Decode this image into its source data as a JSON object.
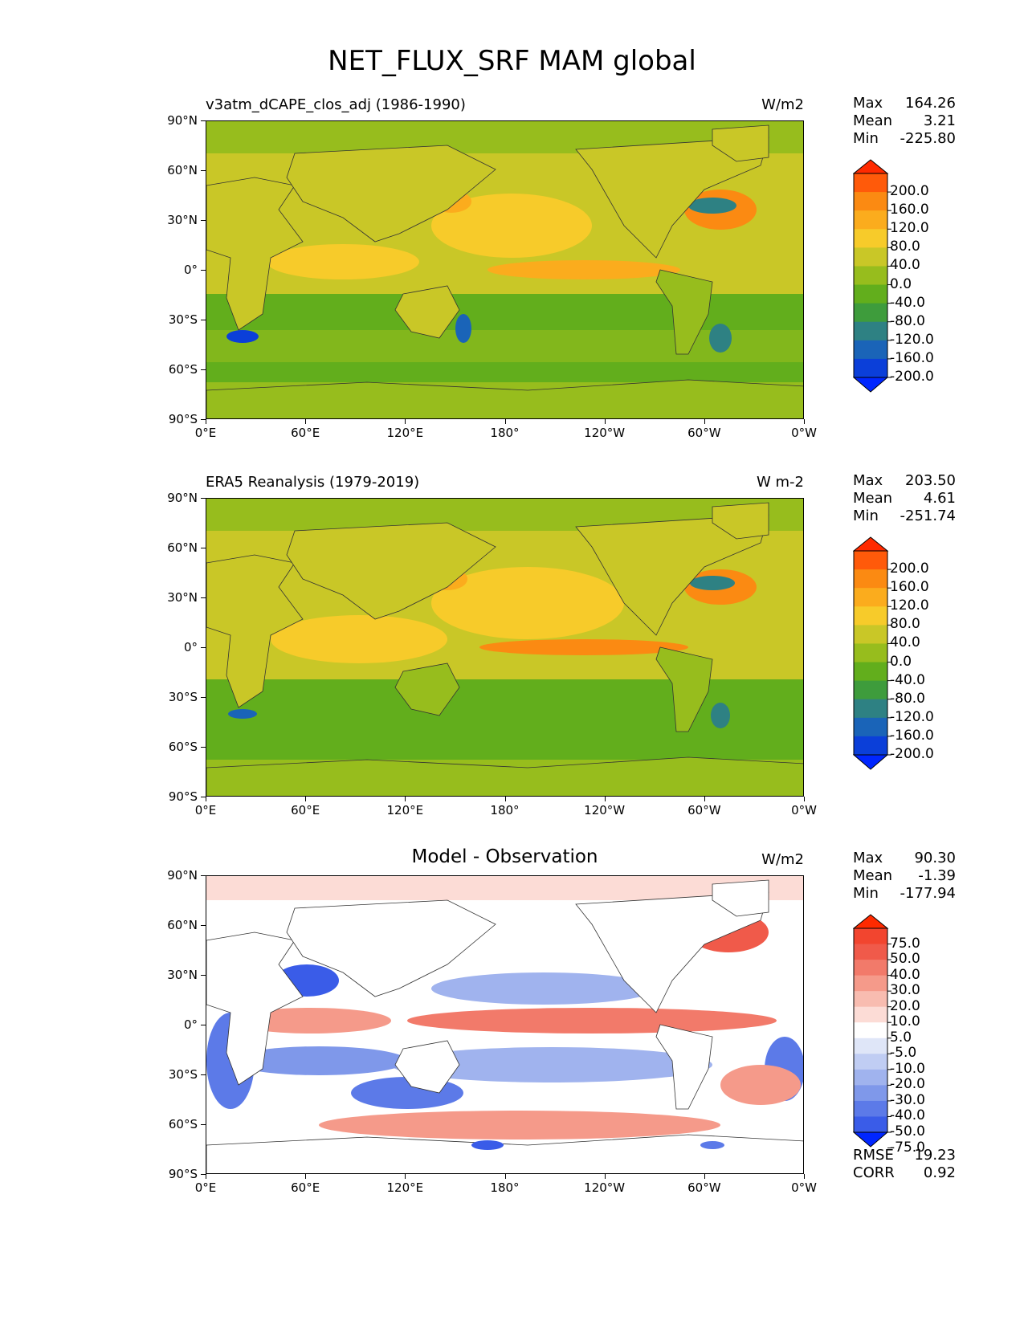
{
  "title": "NET_FLUX_SRF MAM global",
  "axes": {
    "lat_labels": [
      "90°N",
      "60°N",
      "30°N",
      "0°",
      "30°S",
      "60°S",
      "90°S"
    ],
    "lon_labels": [
      "0°E",
      "60°E",
      "120°E",
      "180°",
      "120°W",
      "60°W",
      "0°W"
    ]
  },
  "panels": [
    {
      "title": "v3atm_dCAPE_clos_adj (1986-1990)",
      "units": "W/m2",
      "stats": {
        "max_label": "Max",
        "max": "164.26",
        "mean_label": "Mean",
        "mean": "3.21",
        "min_label": "Min",
        "min": "-225.80"
      },
      "colorbar": {
        "labels": [
          "200.0",
          "160.0",
          "120.0",
          "80.0",
          "40.0",
          "0.0",
          "-40.0",
          "-80.0",
          "-120.0",
          "-160.0",
          "-200.0"
        ],
        "colors": [
          "#ff2a00",
          "#ff5a0a",
          "#fb8a12",
          "#fbac1d",
          "#f7cb2a",
          "#c9c727",
          "#97bd1d",
          "#62ae1c",
          "#3e9c3c",
          "#2e8183",
          "#1a64b8",
          "#0b3fd9",
          "#0026ff"
        ]
      }
    },
    {
      "title": "ERA5 Reanalysis (1979-2019)",
      "units": "W m-2",
      "stats": {
        "max_label": "Max",
        "max": "203.50",
        "mean_label": "Mean",
        "mean": "4.61",
        "min_label": "Min",
        "min": "-251.74"
      },
      "colorbar": {
        "labels": [
          "200.0",
          "160.0",
          "120.0",
          "80.0",
          "40.0",
          "0.0",
          "-40.0",
          "-80.0",
          "-120.0",
          "-160.0",
          "-200.0"
        ],
        "colors": [
          "#ff2a00",
          "#ff5a0a",
          "#fb8a12",
          "#fbac1d",
          "#f7cb2a",
          "#c9c727",
          "#97bd1d",
          "#62ae1c",
          "#3e9c3c",
          "#2e8183",
          "#1a64b8",
          "#0b3fd9",
          "#0026ff"
        ]
      }
    },
    {
      "title": "Model - Observation",
      "units": "W/m2",
      "stats": {
        "max_label": "Max",
        "max": "90.30",
        "mean_label": "Mean",
        "mean": "-1.39",
        "min_label": "Min",
        "min": "-177.94"
      },
      "colorbar": {
        "labels": [
          "75.0",
          "50.0",
          "40.0",
          "30.0",
          "20.0",
          "10.0",
          "5.0",
          "-5.0",
          "-10.0",
          "-20.0",
          "-30.0",
          "-40.0",
          "-50.0",
          "-75.0"
        ],
        "colors": [
          "#ff2a00",
          "#f2452f",
          "#f05a4a",
          "#f27a6a",
          "#f59a8a",
          "#f8bcb0",
          "#fcdcd6",
          "#ffffff",
          "#dfe6f8",
          "#c0cdf3",
          "#a0b3ee",
          "#7f98ea",
          "#5c7ae8",
          "#3a5ce8",
          "#0026ff"
        ]
      },
      "rmse_label": "RMSE",
      "rmse": "19.23",
      "corr_label": "CORR",
      "corr": "0.92"
    }
  ]
}
